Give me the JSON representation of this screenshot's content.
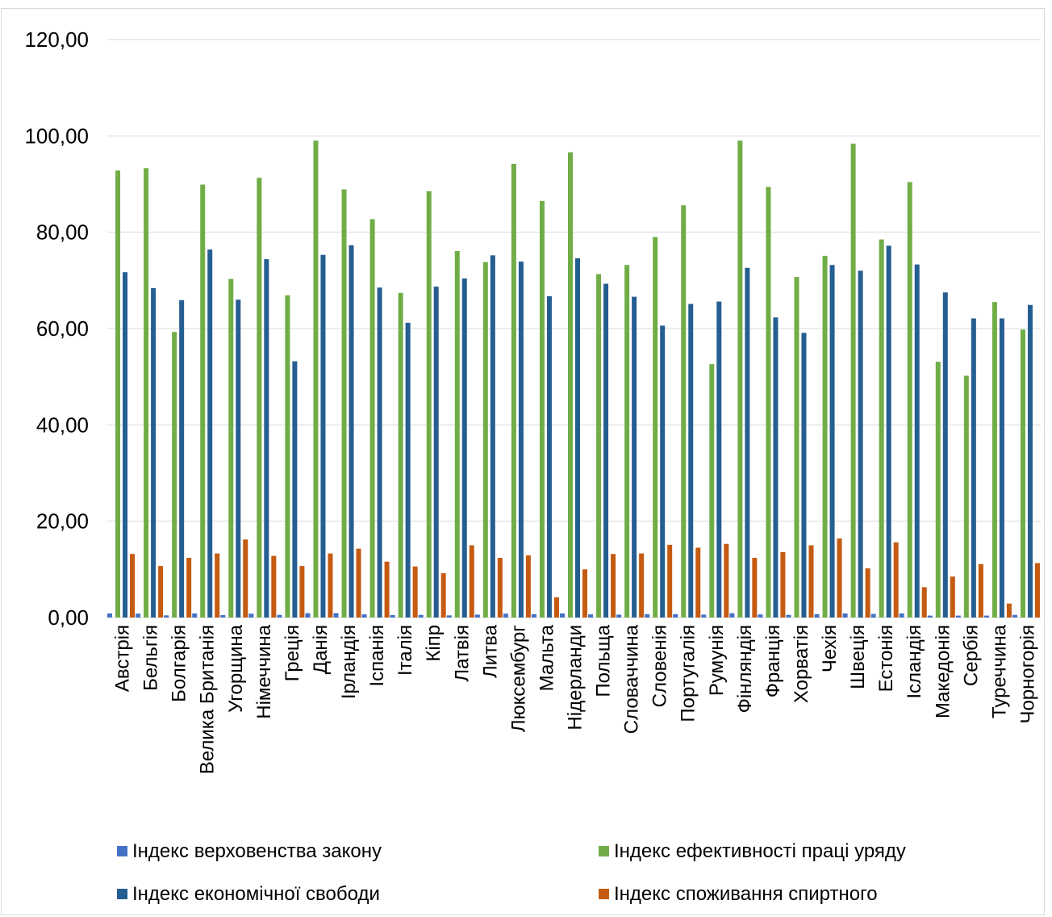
{
  "chart_data": {
    "type": "bar",
    "ylim": [
      0,
      120
    ],
    "y_ticks": [
      "0,00",
      "20,00",
      "40,00",
      "60,00",
      "80,00",
      "100,00",
      "120,00"
    ],
    "grid": true,
    "legend_position": "bottom",
    "categories": [
      "Австрія",
      "Бельгія",
      "Болгарія",
      "Велика Британія",
      "Угорщина",
      "Німеччина",
      "Греція",
      "Данія",
      "Ірландія",
      "Іспанія",
      "Італія",
      "Кіпр",
      "Латвія",
      "Литва",
      "Люксембург",
      "Мальта",
      "Нідерланди",
      "Польща",
      "Словаччина",
      "Словенія",
      "Португалія",
      "Румунія",
      "Фінляндія",
      "Франція",
      "Хорватія",
      "Чехія",
      "Швеція",
      "Естонія",
      "Ісландія",
      "Македонія",
      "Сербія",
      "Туреччина",
      "Чорногорія"
    ],
    "series": [
      {
        "name": "Індекс верховенства закону",
        "color": "#4472c4",
        "values": [
          0.85,
          0.8,
          0.45,
          0.85,
          0.5,
          0.8,
          0.55,
          0.9,
          0.9,
          0.65,
          0.5,
          0.55,
          0.45,
          0.6,
          0.8,
          0.7,
          0.85,
          0.65,
          0.6,
          0.7,
          0.7,
          0.6,
          0.9,
          0.65,
          0.55,
          0.7,
          0.85,
          0.75,
          0.85,
          0.4,
          0.4,
          0.4,
          0.55
        ]
      },
      {
        "name": "Індекс ефективності праці уряду",
        "color": "#70ad47",
        "values": [
          92.8,
          93.3,
          59.3,
          89.9,
          70.3,
          91.3,
          66.9,
          99.0,
          88.9,
          82.7,
          67.4,
          88.5,
          76.1,
          73.8,
          94.2,
          86.5,
          96.6,
          71.3,
          73.2,
          79.0,
          85.6,
          52.6,
          99.0,
          89.4,
          70.7,
          75.1,
          98.4,
          78.5,
          90.4,
          53.1,
          50.2,
          65.5,
          59.8
        ]
      },
      {
        "name": "Індекс економічної свободи",
        "color": "#255e91",
        "values": [
          71.7,
          68.4,
          65.9,
          76.4,
          66.0,
          74.4,
          53.2,
          75.3,
          77.3,
          68.5,
          61.2,
          68.7,
          70.4,
          75.2,
          73.9,
          66.7,
          74.6,
          69.3,
          66.6,
          60.6,
          65.1,
          65.6,
          72.6,
          62.3,
          59.1,
          73.2,
          72.0,
          77.2,
          73.3,
          67.5,
          62.1,
          62.1,
          64.9
        ]
      },
      {
        "name": "Індекс споживання спиртного",
        "color": "#c55a11",
        "values": [
          13.2,
          10.7,
          12.4,
          13.3,
          16.2,
          12.8,
          10.7,
          13.3,
          14.3,
          11.6,
          10.6,
          9.2,
          15.0,
          12.4,
          12.9,
          4.2,
          10.0,
          13.2,
          13.3,
          15.1,
          14.5,
          15.3,
          12.4,
          13.6,
          15.0,
          16.4,
          10.2,
          15.6,
          6.3,
          8.5,
          11.1,
          2.9,
          11.3
        ]
      }
    ]
  }
}
